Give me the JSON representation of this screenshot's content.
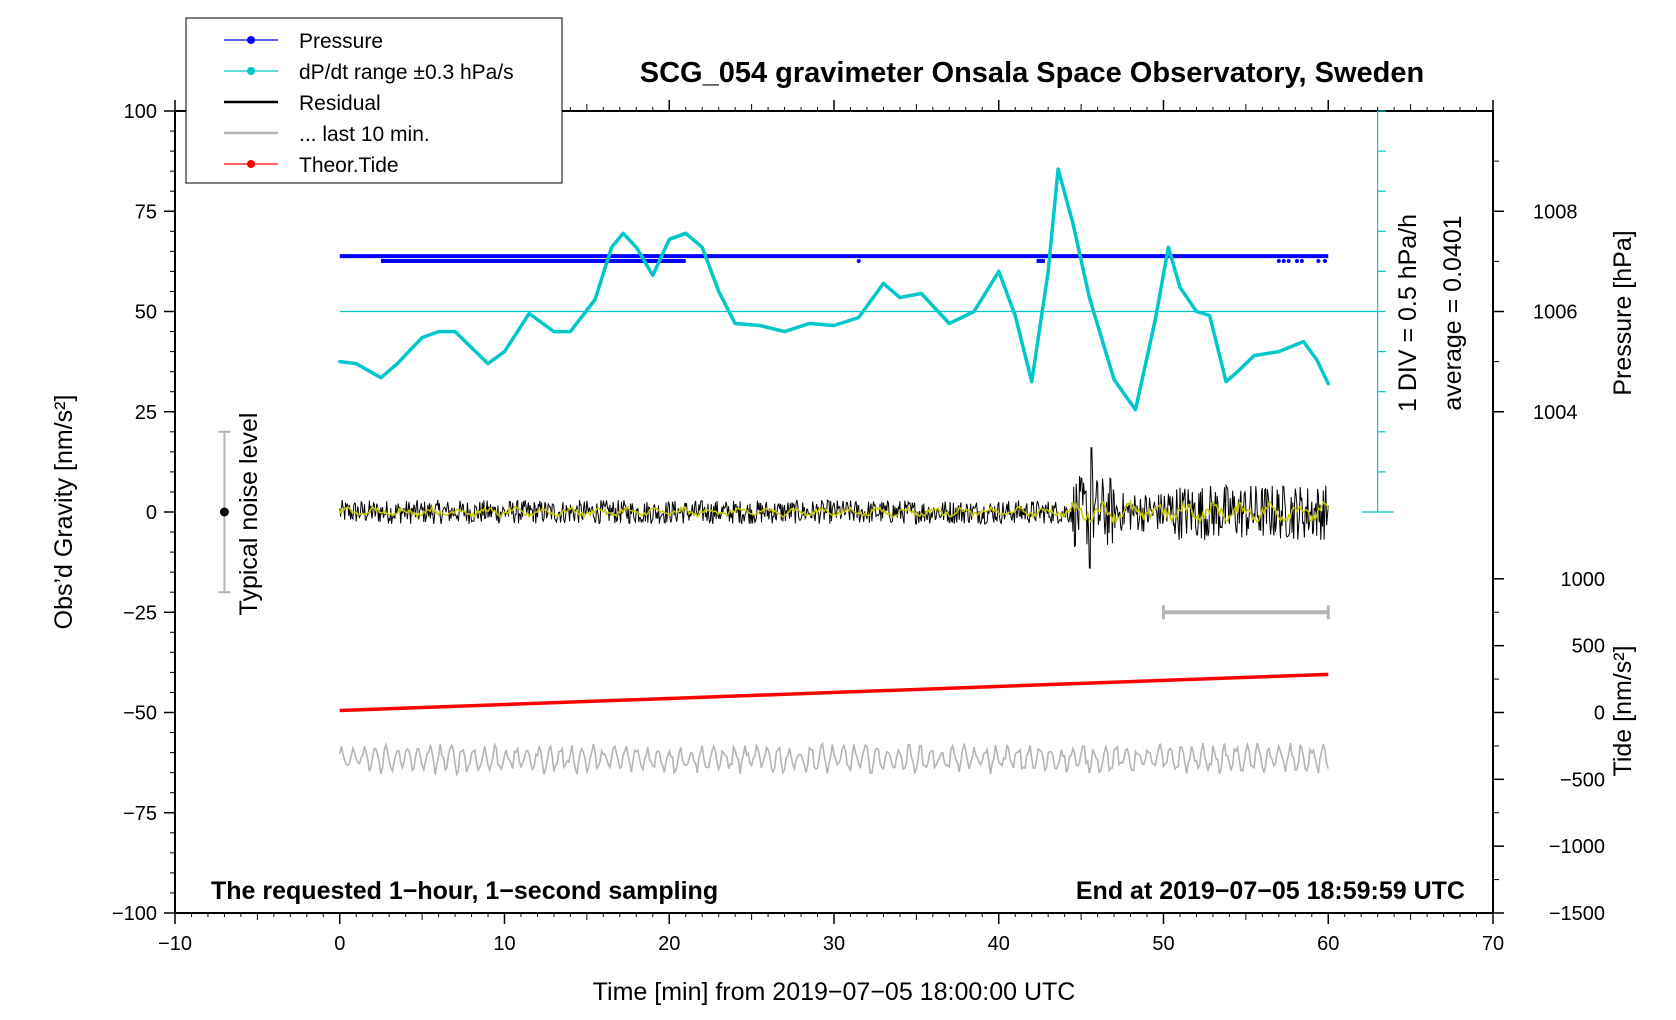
{
  "chart_data": {
    "type": "line",
    "title": "SCG_054 gravimeter Onsala Space Observatory, Sweden",
    "xlabel": "Time [min] from 2019−07−05 18:00:00 UTC",
    "ylabel_left": "Obs’d Gravity [nm/s²]",
    "ylabel_right_pressure": "Pressure [hPa]",
    "ylabel_right_tide": "Tide [nm/s²]",
    "xlim": [
      -10,
      70
    ],
    "ylim": [
      -100,
      100
    ],
    "x_ticks": [
      "−10",
      "0",
      "10",
      "20",
      "30",
      "40",
      "50",
      "60",
      "70"
    ],
    "y_ticks_left": [
      "100",
      "75",
      "50",
      "25",
      "0",
      "−25",
      "−50",
      "−75",
      "−100"
    ],
    "pressure_ticks": [
      "1008",
      "1006",
      "1004"
    ],
    "tide_ticks": [
      "1000",
      "500",
      "0",
      "−500",
      "−1000",
      "−1500"
    ],
    "legend": [
      {
        "label": "Pressure",
        "color": "#0000ff",
        "marker": true
      },
      {
        "label": "dP/dt range ±0.3 hPa/s",
        "color": "#00c8c8",
        "marker": true
      },
      {
        "label": "Residual",
        "color": "#000000",
        "marker": false
      },
      {
        "label": "... last 10 min.",
        "color": "#b4b4b4",
        "marker": false
      },
      {
        "label": "Theor.Tide",
        "color": "#ff0000",
        "marker": true
      }
    ],
    "legend_position": "top-left",
    "annotations": {
      "div_label": "1 DIV = 0.5 hPa/h",
      "average_label": "average = 0.0401",
      "noise_label": "Typical noise level",
      "note_left": "The requested 1−hour, 1−second sampling",
      "note_right": "End at 2019−07−05 18:59:59 UTC"
    },
    "series": [
      {
        "name": "dP/dt range ±0.3 hPa/s",
        "color": "#00c8c8",
        "x": [
          0,
          1,
          2.5,
          3.5,
          5,
          6,
          7,
          9,
          10,
          11.5,
          13,
          14,
          15.5,
          16.5,
          17.2,
          18,
          19,
          20,
          21,
          22,
          23,
          24,
          25.5,
          27,
          28.5,
          30,
          31.5,
          33,
          34,
          35.3,
          37,
          38.5,
          40,
          41,
          42,
          43,
          43.6,
          44.5,
          45.5,
          47,
          48.3,
          49.5,
          50.3,
          51,
          52,
          52.8,
          53.8,
          54.5,
          55.5,
          57,
          58.5,
          59.3,
          60
        ],
        "values": [
          37.5,
          37,
          33.5,
          37,
          43.5,
          45,
          45,
          37,
          40,
          49.5,
          45,
          45,
          53,
          66,
          69.5,
          66,
          59,
          68,
          69.5,
          66,
          55,
          47,
          46.5,
          45,
          47,
          46.5,
          48.5,
          57,
          53.5,
          54.5,
          47,
          50,
          60,
          49,
          32.5,
          60,
          85.5,
          72,
          53.5,
          33,
          25.5,
          48,
          66,
          56,
          50,
          49,
          32.5,
          35,
          39,
          40,
          42.5,
          38,
          32
        ]
      },
      {
        "name": "Theor.Tide",
        "color": "#ff0000",
        "x": [
          0,
          60
        ],
        "values": [
          -49.5,
          -40.5
        ]
      }
    ],
    "pressure_levels": [
      {
        "x0": 0,
        "x1": 21,
        "y": 63.8
      },
      {
        "x0": 2.5,
        "x1": 21,
        "y": 62.6
      },
      {
        "x0": 21,
        "x1": 60,
        "y": 63.8
      },
      {
        "x0": 42.3,
        "x1": 42.8,
        "y": 62.6
      }
    ],
    "pressure_reference_y": 50,
    "residual_noise_nm_s2": {
      "0-45": 3,
      "45-60": 6,
      "peak_max": 16,
      "peak_min": -14
    },
    "last10_bar": {
      "x0": 50,
      "x1": 60,
      "y": -25
    },
    "noise_bar": {
      "x": -7,
      "y_top": 20,
      "y_bottom": -20,
      "y_center": 0
    }
  }
}
